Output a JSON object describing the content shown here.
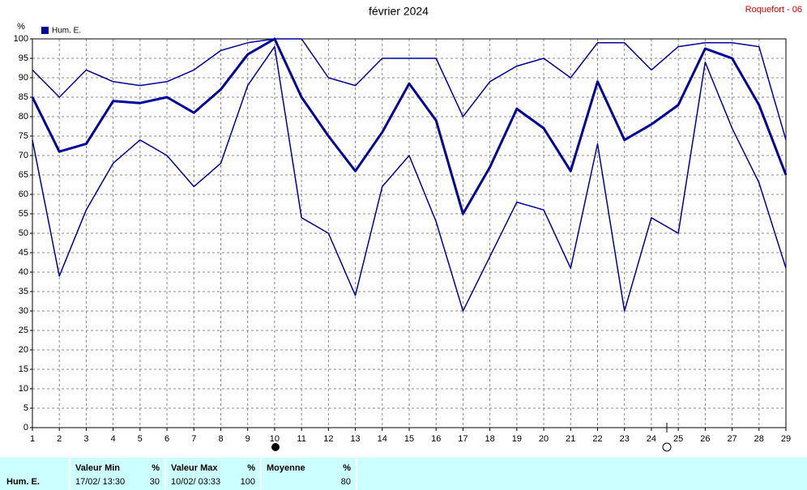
{
  "chart_data": {
    "type": "line",
    "title": "février 2024",
    "subtitle": "Roquefort - 06",
    "y_label": "%",
    "legend": "Hum. E.",
    "x": [
      1,
      2,
      3,
      4,
      5,
      6,
      7,
      8,
      9,
      10,
      11,
      12,
      13,
      14,
      15,
      16,
      17,
      18,
      19,
      20,
      21,
      22,
      23,
      24,
      25,
      26,
      27,
      28,
      29
    ],
    "xlim": [
      1,
      29
    ],
    "xticks": [
      1,
      2,
      3,
      4,
      5,
      6,
      7,
      8,
      9,
      10,
      11,
      12,
      13,
      14,
      15,
      16,
      17,
      18,
      19,
      20,
      21,
      22,
      23,
      24,
      25,
      26,
      27,
      28,
      29
    ],
    "ylim": [
      0,
      100
    ],
    "yticks": [
      0,
      5,
      10,
      15,
      20,
      25,
      30,
      35,
      40,
      45,
      50,
      55,
      60,
      65,
      70,
      75,
      80,
      85,
      90,
      95,
      100
    ],
    "grid": true,
    "series": [
      {
        "color": "#00009c",
        "width": 1.5,
        "values": [
          92,
          85,
          92,
          89,
          88,
          89,
          92,
          97,
          99,
          100,
          100,
          90,
          88,
          95,
          95,
          95,
          80,
          89,
          93,
          95,
          90,
          99,
          99,
          92,
          98,
          99,
          99,
          98,
          74
        ]
      },
      {
        "color": "#00009c",
        "width": 3,
        "values": [
          85,
          71,
          73,
          84,
          83.5,
          85,
          81,
          87,
          96,
          100,
          85,
          75,
          66,
          76,
          88.5,
          79,
          55,
          67,
          82,
          77,
          66,
          89,
          74,
          78,
          83,
          97.5,
          95,
          83,
          65
        ]
      },
      {
        "color": "#00009c",
        "width": 1.5,
        "values": [
          74,
          39,
          56,
          68,
          74,
          70,
          62,
          68,
          88,
          98,
          54,
          50,
          34,
          62,
          70,
          53,
          30,
          44,
          58,
          56,
          41,
          73,
          30,
          54,
          50,
          94,
          77,
          63,
          41
        ]
      }
    ]
  },
  "summary": {
    "row_label": "Hum. E.",
    "min": {
      "header": "Valeur Min",
      "unit": "%",
      "date": "17/02/  13:30",
      "value": 30
    },
    "max": {
      "header": "Valeur Max",
      "unit": "%",
      "date": "10/02/  03:33",
      "value": 100
    },
    "mean": {
      "header": "Moyenne",
      "unit": "%",
      "value": 80
    }
  }
}
